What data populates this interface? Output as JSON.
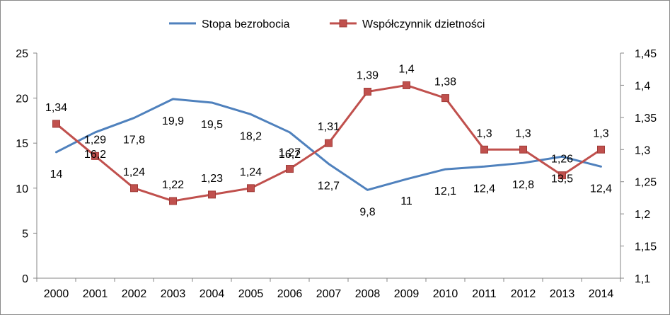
{
  "chart_data": {
    "type": "line",
    "categories": [
      "2000",
      "2001",
      "2002",
      "2003",
      "2004",
      "2005",
      "2006",
      "2007",
      "2008",
      "2009",
      "2010",
      "2011",
      "2012",
      "2013",
      "2014"
    ],
    "series": [
      {
        "name": "Stopa bezrobocia",
        "axis": "left",
        "color": "#4f81bd",
        "marker": "none",
        "values": [
          14,
          16.2,
          17.8,
          19.9,
          19.5,
          18.2,
          16.2,
          12.7,
          9.8,
          11,
          12.1,
          12.4,
          12.8,
          13.5,
          12.4
        ],
        "labels": [
          "14",
          "16,2",
          "17,8",
          "19,9",
          "19,5",
          "18,2",
          "16,2",
          "12,7",
          "9,8",
          "11",
          "12,1",
          "12,4",
          "12,8",
          "13,5",
          "12,4"
        ]
      },
      {
        "name": "Współczynnik dzietności",
        "axis": "right",
        "color": "#c0504d",
        "marker": "square",
        "values": [
          1.34,
          1.29,
          1.24,
          1.22,
          1.23,
          1.24,
          1.27,
          1.31,
          1.39,
          1.4,
          1.38,
          1.3,
          1.3,
          1.26,
          1.3
        ],
        "labels": [
          "1,34",
          "1,29",
          "1,24",
          "1,22",
          "1,23",
          "1,24",
          "1,27",
          "1,31",
          "1,39",
          "1,4",
          "1,38",
          "1,3",
          "1,3",
          "1,26",
          "1,3"
        ]
      }
    ],
    "y_left": {
      "lim": [
        0,
        25
      ],
      "ticks": [
        "0",
        "5",
        "10",
        "15",
        "20",
        "25"
      ]
    },
    "y_right": {
      "lim": [
        1.1,
        1.45
      ],
      "ticks": [
        "1,1",
        "1,15",
        "1,2",
        "1,25",
        "1,3",
        "1,35",
        "1,4",
        "1,45"
      ]
    },
    "grid": false,
    "legend_position": "top"
  }
}
